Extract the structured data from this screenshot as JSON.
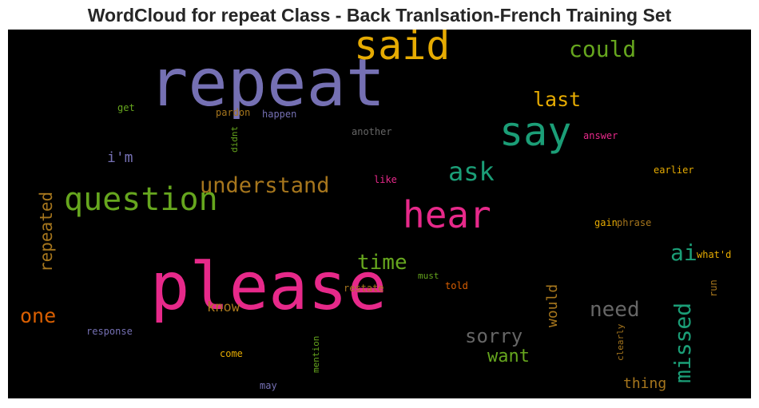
{
  "title": "WordCloud for repeat Class - Back Tranlsation-French Training Set",
  "words": [
    {
      "text": "repeat",
      "color": "#7570b3"
    },
    {
      "text": "please",
      "color": "#e7298a"
    },
    {
      "text": "said",
      "color": "#e6ab02"
    },
    {
      "text": "say",
      "color": "#1b9e77"
    },
    {
      "text": "question",
      "color": "#66a61e"
    },
    {
      "text": "hear",
      "color": "#e7298a"
    },
    {
      "text": "could",
      "color": "#66a61e"
    },
    {
      "text": "understand",
      "color": "#a6761d"
    },
    {
      "text": "ask",
      "color": "#1b9e77"
    },
    {
      "text": "last",
      "color": "#e6ab02"
    },
    {
      "text": "time",
      "color": "#66a61e"
    },
    {
      "text": "missed",
      "color": "#1b9e77"
    },
    {
      "text": "need",
      "color": "#666666"
    },
    {
      "text": "sorry",
      "color": "#666666"
    },
    {
      "text": "one",
      "color": "#d95f02"
    },
    {
      "text": "repeated",
      "color": "#a6761d"
    },
    {
      "text": "ai",
      "color": "#1b9e77"
    },
    {
      "text": "want",
      "color": "#66a61e"
    },
    {
      "text": "thing",
      "color": "#a6761d"
    },
    {
      "text": "know",
      "color": "#a6761d"
    },
    {
      "text": "would",
      "color": "#a6761d"
    },
    {
      "text": "i'm",
      "color": "#7570b3"
    },
    {
      "text": "get",
      "color": "#66a61e"
    },
    {
      "text": "pardon",
      "color": "#a6761d"
    },
    {
      "text": "happen",
      "color": "#7570b3"
    },
    {
      "text": "didnt",
      "color": "#66a61e"
    },
    {
      "text": "another",
      "color": "#666666"
    },
    {
      "text": "answer",
      "color": "#e7298a"
    },
    {
      "text": "like",
      "color": "#e7298a"
    },
    {
      "text": "earlier",
      "color": "#e6ab02"
    },
    {
      "text": "gain",
      "color": "#e6ab02"
    },
    {
      "text": "phrase",
      "color": "#a6761d"
    },
    {
      "text": "what'd",
      "color": "#e6ab02"
    },
    {
      "text": "run",
      "color": "#a6761d"
    },
    {
      "text": "must",
      "color": "#66a61e"
    },
    {
      "text": "restate",
      "color": "#a6761d"
    },
    {
      "text": "told",
      "color": "#d95f02"
    },
    {
      "text": "response",
      "color": "#7570b3"
    },
    {
      "text": "come",
      "color": "#e6ab02"
    },
    {
      "text": "mention",
      "color": "#66a61e"
    },
    {
      "text": "clearly",
      "color": "#a6761d"
    },
    {
      "text": "may",
      "color": "#7570b3"
    }
  ]
}
